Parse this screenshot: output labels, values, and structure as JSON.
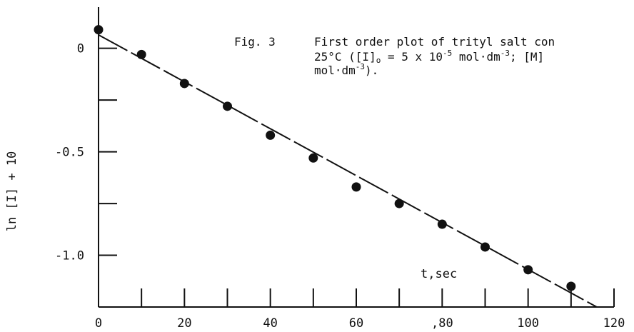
{
  "chart_data": {
    "type": "scatter",
    "title": "",
    "caption": {
      "line1_prefix": "Fig. 3",
      "line1": "First order plot of trityl salt con",
      "line2_a": "25°C ([I]",
      "line2_sub": "o",
      "line2_b": " = 5 x 10",
      "line2_exp1": "-5",
      "line2_c": " mol·dm",
      "line2_exp2": "-3",
      "line2_d": "; [M]",
      "line3_a": "mol·dm",
      "line3_exp": "-3",
      "line3_b": ")."
    },
    "xlabel": "t,sec",
    "ylabel": "ln [I] + 10",
    "xlim": [
      0,
      120
    ],
    "ylim": [
      -1.25,
      0.13
    ],
    "x_ticks": [
      0,
      10,
      20,
      30,
      40,
      50,
      60,
      70,
      80,
      90,
      100,
      110,
      120
    ],
    "x_tick_labels": [
      "0",
      "20",
      "40",
      "60",
      ",80",
      "100",
      "120"
    ],
    "x_tick_label_values": [
      0,
      20,
      40,
      60,
      80,
      100,
      120
    ],
    "y_ticks": [
      0,
      -0.25,
      -0.5,
      -0.75,
      -1.0
    ],
    "y_tick_labels": [
      "0",
      "-0.5",
      "-1.0"
    ],
    "y_tick_label_values": [
      0,
      -0.5,
      -1.0
    ],
    "grid": false,
    "series": [
      {
        "x": [
          0,
          10,
          20,
          30,
          40,
          50,
          60,
          70,
          80,
          90,
          100,
          110
        ],
        "y": [
          0.09,
          -0.03,
          -0.17,
          -0.28,
          -0.42,
          -0.53,
          -0.67,
          -0.75,
          -0.85,
          -0.96,
          -1.07,
          -1.15
        ],
        "marker_color": "#111111"
      }
    ],
    "fit_line": {
      "style": "long-dash",
      "color": "#111111",
      "x": [
        0,
        116
      ],
      "y": [
        0.065,
        -1.25
      ]
    }
  }
}
